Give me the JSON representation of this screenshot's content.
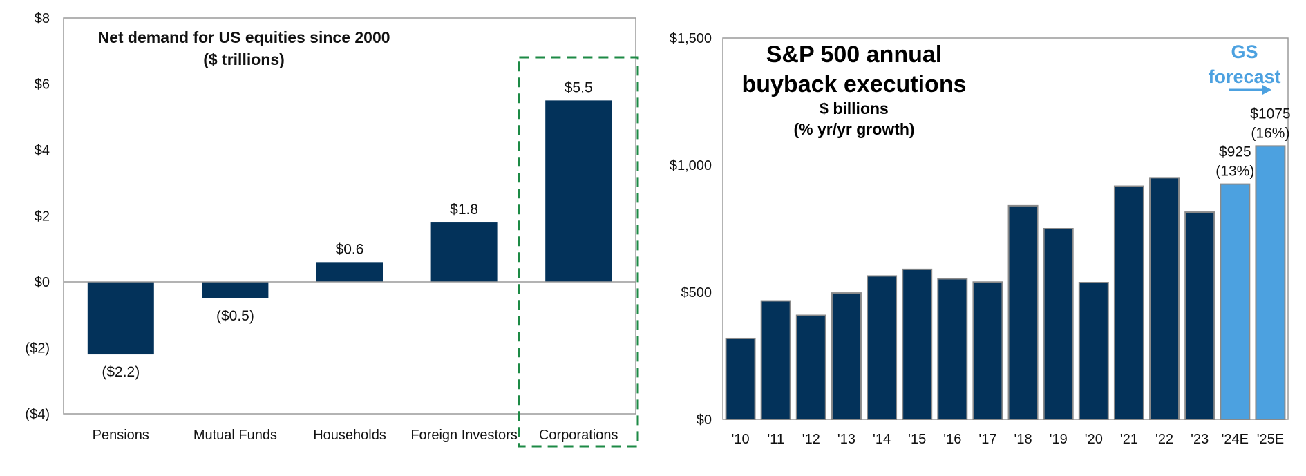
{
  "colors": {
    "navy": "#03325a",
    "forecast_blue": "#4ca1e0",
    "highlight_green": "#1d8a45",
    "axis_gray": "#9a9a9a"
  },
  "chart_data": [
    {
      "type": "bar",
      "title": "Net demand for US equities since 2000",
      "subtitle": "($ trillions)",
      "categories": [
        "Pensions",
        "Mutual Funds",
        "Households",
        "Foreign Investors",
        "Corporations"
      ],
      "values": [
        -2.2,
        -0.5,
        0.6,
        1.8,
        5.5
      ],
      "data_labels": [
        "($2.2)",
        "($0.5)",
        "$0.6",
        "$1.8",
        "$5.5"
      ],
      "ylim": [
        -4,
        8
      ],
      "yticks": [
        8,
        6,
        4,
        2,
        0,
        -2,
        -4
      ],
      "ytick_labels": [
        "$8",
        "$6",
        "$4",
        "$2",
        "$0",
        "($2)",
        "($4)"
      ],
      "highlighted_category": "Corporations",
      "grid": false
    },
    {
      "type": "bar",
      "title_lines": [
        "S&P 500 annual",
        "buyback executions"
      ],
      "subtitle_lines": [
        "$ billions",
        "(% yr/yr growth)"
      ],
      "annotation_lines": [
        "GS",
        "forecast"
      ],
      "categories": [
        "'10",
        "'11",
        "'12",
        "'13",
        "'14",
        "'15",
        "'16",
        "'17",
        "'18",
        "'19",
        "'20",
        "'21",
        "'22",
        "'23",
        "'24E",
        "'25E"
      ],
      "values": [
        318,
        466,
        409,
        497,
        564,
        590,
        553,
        540,
        840,
        750,
        538,
        917,
        950,
        815,
        925,
        1075
      ],
      "forecast": [
        false,
        false,
        false,
        false,
        false,
        false,
        false,
        false,
        false,
        false,
        false,
        false,
        false,
        false,
        true,
        true
      ],
      "data_labels": [
        {
          "index": 14,
          "lines": [
            "$925",
            "(13%)"
          ]
        },
        {
          "index": 15,
          "lines": [
            "$1075",
            "(16%)"
          ]
        }
      ],
      "ylim": [
        0,
        1500
      ],
      "yticks": [
        1500,
        1000,
        500,
        0
      ],
      "ytick_labels": [
        "$1,500",
        "$1,000",
        "$500",
        "$0"
      ],
      "grid": false
    }
  ]
}
